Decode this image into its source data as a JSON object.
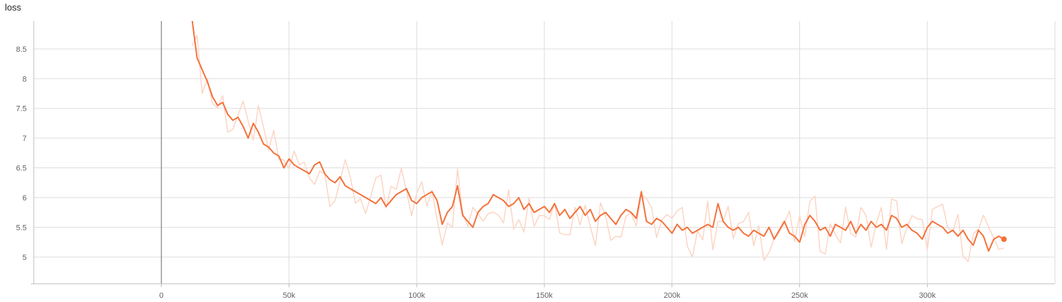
{
  "chart_data": {
    "type": "line",
    "title": "loss",
    "xlabel": "",
    "ylabel": "",
    "xlim": [
      -50000,
      350000
    ],
    "ylim": [
      4.55,
      8.97
    ],
    "xticks": [
      0,
      50000,
      100000,
      150000,
      200000,
      250000,
      300000
    ],
    "xtick_labels": [
      "0",
      "50k",
      "100k",
      "150k",
      "200k",
      "250k",
      "300k"
    ],
    "yticks": [
      5,
      5.5,
      6,
      6.5,
      7,
      7.5,
      8,
      8.5
    ],
    "ytick_labels": [
      "5",
      "5.5",
      "6",
      "6.5",
      "7",
      "7.5",
      "8",
      "8.5"
    ],
    "grid": true,
    "colors": {
      "line": "#f4713b",
      "raw": "#fcd5c4",
      "axis_zero": "#7f7f7f",
      "grid": "#dddddd"
    },
    "series": [
      {
        "x": [
          12000,
          14000,
          16000,
          18000,
          20000,
          22000,
          24000,
          26000,
          28000,
          30000,
          32000,
          34000,
          36000,
          38000,
          40000,
          42000,
          44000,
          46000,
          48000,
          50000,
          52000,
          54000,
          56000,
          58000,
          60000,
          62000,
          64000,
          66000,
          68000,
          70000,
          72000,
          74000,
          76000,
          78000,
          80000,
          82000,
          84000,
          86000,
          88000,
          90000,
          92000,
          94000,
          96000,
          98000,
          100000,
          102000,
          104000,
          106000,
          108000,
          110000,
          112000,
          114000,
          116000,
          118000,
          120000,
          122000,
          124000,
          126000,
          128000,
          130000,
          132000,
          134000,
          136000,
          138000,
          140000,
          142000,
          144000,
          146000,
          148000,
          150000,
          152000,
          154000,
          156000,
          158000,
          160000,
          162000,
          164000,
          166000,
          168000,
          170000,
          172000,
          174000,
          176000,
          178000,
          180000,
          182000,
          184000,
          186000,
          188000,
          190000,
          192000,
          194000,
          196000,
          198000,
          200000,
          202000,
          204000,
          206000,
          208000,
          210000,
          212000,
          214000,
          216000,
          218000,
          220000,
          222000,
          224000,
          226000,
          228000,
          230000,
          232000,
          234000,
          236000,
          238000,
          240000,
          242000,
          244000,
          246000,
          248000,
          250000,
          252000,
          254000,
          256000,
          258000,
          260000,
          262000,
          264000,
          266000,
          268000,
          270000,
          272000,
          274000,
          276000,
          278000,
          280000,
          282000,
          284000,
          286000,
          288000,
          290000,
          292000,
          294000,
          296000,
          298000,
          300000,
          302000,
          304000,
          306000,
          308000,
          310000,
          312000,
          314000,
          316000,
          318000,
          320000,
          322000,
          324000,
          326000,
          328000,
          330000
        ],
        "values": [
          9.0,
          8.35,
          8.15,
          7.95,
          7.7,
          7.55,
          7.6,
          7.4,
          7.3,
          7.35,
          7.2,
          7.0,
          7.25,
          7.1,
          6.9,
          6.85,
          6.75,
          6.7,
          6.5,
          6.65,
          6.55,
          6.5,
          6.45,
          6.4,
          6.55,
          6.6,
          6.4,
          6.3,
          6.25,
          6.35,
          6.2,
          6.15,
          6.1,
          6.05,
          6.0,
          5.95,
          5.9,
          6.0,
          5.85,
          5.95,
          6.05,
          6.1,
          6.15,
          5.95,
          5.9,
          6.0,
          6.05,
          6.1,
          5.95,
          5.55,
          5.75,
          5.85,
          6.2,
          5.7,
          5.6,
          5.5,
          5.75,
          5.85,
          5.9,
          6.05,
          6.0,
          5.95,
          5.85,
          5.9,
          6.0,
          5.8,
          5.9,
          5.75,
          5.8,
          5.85,
          5.75,
          5.9,
          5.7,
          5.8,
          5.65,
          5.75,
          5.85,
          5.7,
          5.8,
          5.6,
          5.7,
          5.75,
          5.65,
          5.55,
          5.7,
          5.8,
          5.75,
          5.65,
          6.1,
          5.6,
          5.55,
          5.65,
          5.6,
          5.5,
          5.4,
          5.55,
          5.45,
          5.5,
          5.4,
          5.45,
          5.5,
          5.55,
          5.5,
          5.9,
          5.6,
          5.5,
          5.45,
          5.5,
          5.4,
          5.35,
          5.45,
          5.4,
          5.35,
          5.5,
          5.3,
          5.45,
          5.6,
          5.4,
          5.35,
          5.25,
          5.55,
          5.7,
          5.6,
          5.45,
          5.5,
          5.35,
          5.55,
          5.5,
          5.45,
          5.6,
          5.4,
          5.55,
          5.45,
          5.6,
          5.5,
          5.55,
          5.45,
          5.7,
          5.65,
          5.5,
          5.55,
          5.45,
          5.4,
          5.3,
          5.5,
          5.6,
          5.55,
          5.5,
          5.4,
          5.45,
          5.35,
          5.45,
          5.3,
          5.2,
          5.45,
          5.35,
          5.1,
          5.3,
          5.35,
          5.3
        ]
      }
    ]
  }
}
